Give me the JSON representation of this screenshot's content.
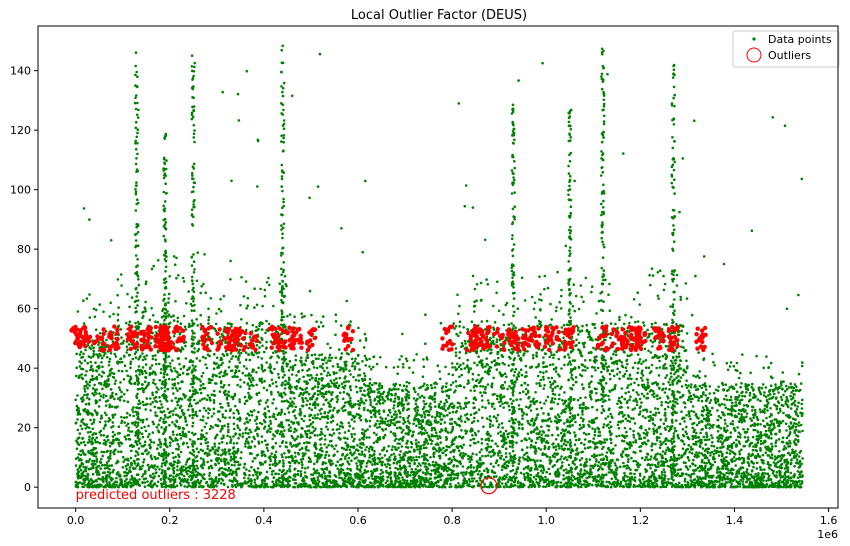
{
  "chart_data": {
    "type": "scatter",
    "title": "Local Outlier Factor (DEUS)",
    "xlabel": "",
    "ylabel": "",
    "x_offset_label": "1e6",
    "xlim": [
      -0.08,
      1.62
    ],
    "ylim": [
      -7,
      155
    ],
    "x_ticks": [
      0.0,
      0.2,
      0.4,
      0.6,
      0.8,
      1.0,
      1.2,
      1.4,
      1.6
    ],
    "x_tick_labels": [
      "0.0",
      "0.2",
      "0.4",
      "0.6",
      "0.8",
      "1.0",
      "1.2",
      "1.4",
      "1.6"
    ],
    "y_ticks": [
      0,
      20,
      40,
      60,
      80,
      100,
      120,
      140
    ],
    "y_tick_labels": [
      "0",
      "20",
      "40",
      "60",
      "80",
      "100",
      "120",
      "140"
    ],
    "grid": false,
    "legend_position": "top-right",
    "legend": [
      {
        "label": "Data points",
        "marker": "dot",
        "color": "#008000"
      },
      {
        "label": "Outliers",
        "marker": "open-circle",
        "color": "#ff0000"
      }
    ],
    "annotation": {
      "text": "predicted outliers : 3228",
      "color": "#ff0000",
      "x": 0.0,
      "y": -2
    },
    "highlighted_outlier": {
      "x": 0.878,
      "y": 0.5
    },
    "series": [
      {
        "name": "Data points",
        "color": "#008000",
        "x_range": [
          0.0,
          1.545
        ],
        "density_profile": [
          {
            "x_start": 0.0,
            "x_end": 0.08,
            "typical_max": 50,
            "peak": 113
          },
          {
            "x_start": 0.08,
            "x_end": 0.14,
            "typical_max": 55,
            "peak": 148
          },
          {
            "x_start": 0.14,
            "x_end": 0.22,
            "typical_max": 60,
            "peak": 90
          },
          {
            "x_start": 0.22,
            "x_end": 0.3,
            "typical_max": 55,
            "peak": 149
          },
          {
            "x_start": 0.3,
            "x_end": 0.45,
            "typical_max": 55,
            "peak": 149
          },
          {
            "x_start": 0.45,
            "x_end": 0.62,
            "typical_max": 45,
            "peak": 148
          },
          {
            "x_start": 0.62,
            "x_end": 0.8,
            "typical_max": 35,
            "peak": 60
          },
          {
            "x_start": 0.8,
            "x_end": 1.1,
            "typical_max": 55,
            "peak": 148
          },
          {
            "x_start": 1.1,
            "x_end": 1.3,
            "typical_max": 55,
            "peak": 149
          },
          {
            "x_start": 1.3,
            "x_end": 1.545,
            "typical_max": 35,
            "peak": 125
          }
        ]
      },
      {
        "name": "Outliers",
        "color": "#ff0000",
        "band_y": [
          46,
          54
        ],
        "clusters_x": [
          0.0,
          0.02,
          0.05,
          0.08,
          0.12,
          0.15,
          0.18,
          0.19,
          0.2,
          0.22,
          0.28,
          0.31,
          0.33,
          0.35,
          0.38,
          0.42,
          0.43,
          0.45,
          0.47,
          0.5,
          0.58,
          0.79,
          0.84,
          0.85,
          0.87,
          0.9,
          0.93,
          0.96,
          0.98,
          1.0,
          1.02,
          1.05,
          1.12,
          1.15,
          1.17,
          1.19,
          1.2,
          1.24,
          1.27,
          1.33
        ]
      }
    ]
  }
}
